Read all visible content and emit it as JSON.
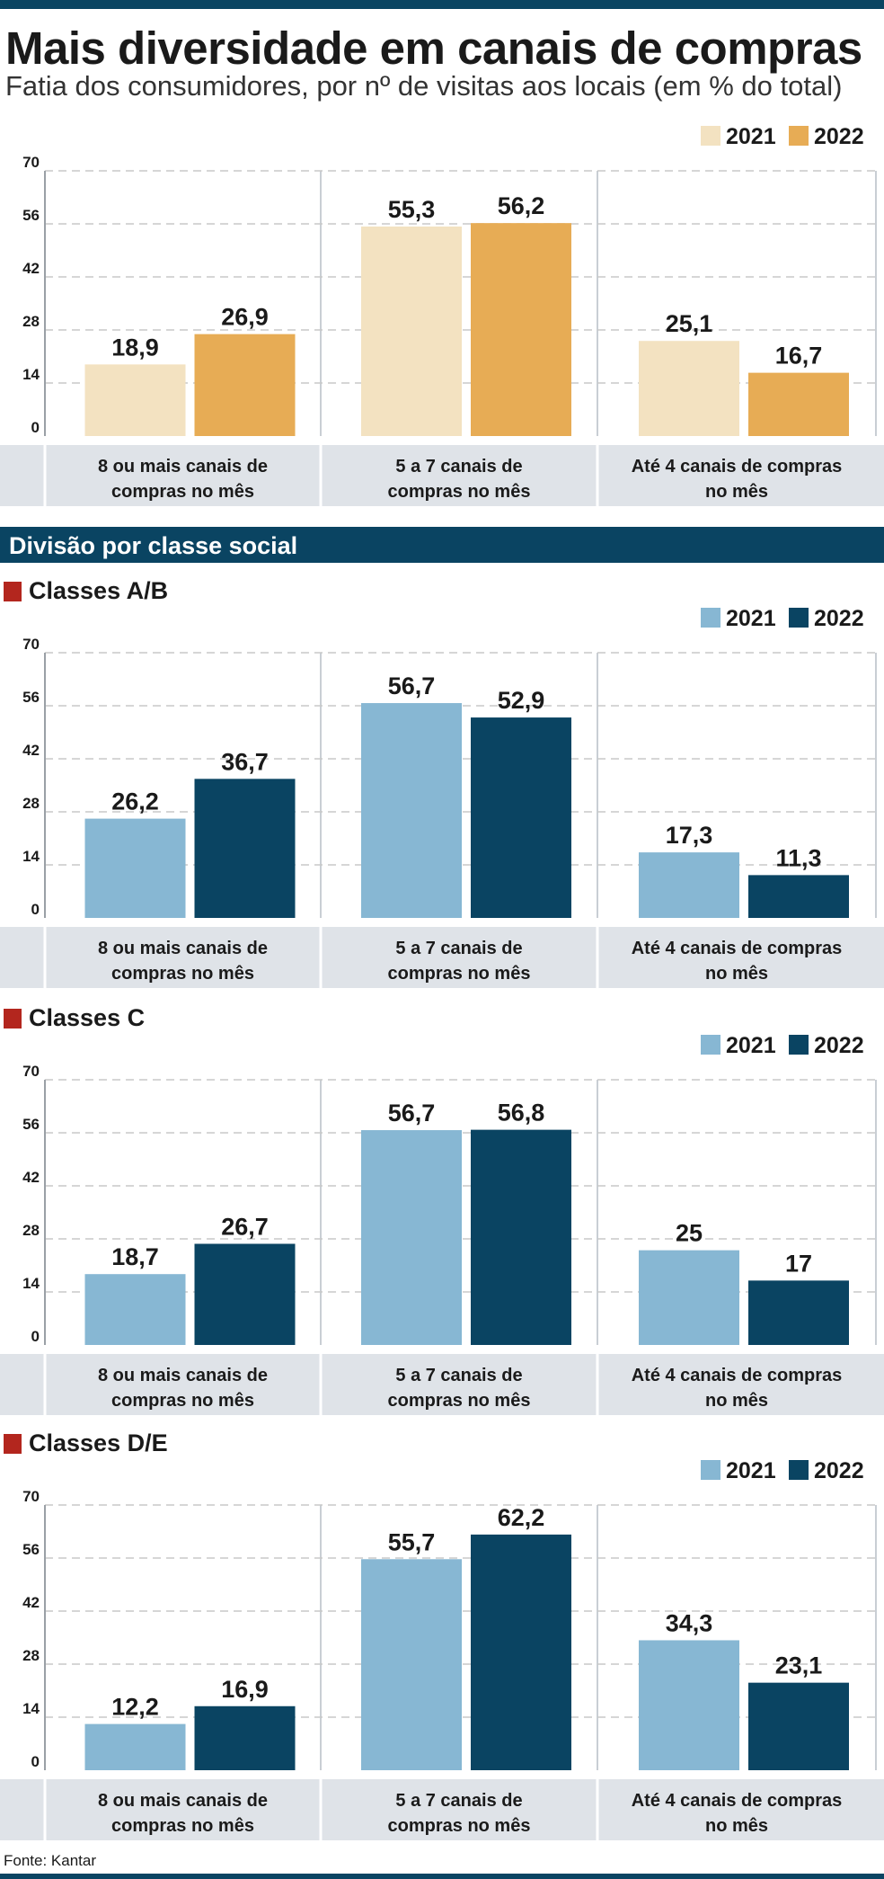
{
  "title": "Mais diversidade em canais de compras",
  "subtitle": "Fatia dos consumidores, por nº de visitas aos locais (em % do total)",
  "section_label": "Divisão por classe social",
  "source": "Fonte: Kantar",
  "colors": {
    "brand": "#0a4462",
    "accent_red": "#b3261e",
    "beige_2021": "#f3e2c1",
    "orange_2022": "#e7ac55",
    "lightblue_2021": "#87b7d3",
    "navy_2022": "#0a4462",
    "category_band": "#dfe3e8"
  },
  "chart_data": [
    {
      "id": "total",
      "type": "bar",
      "heading": "",
      "categories": [
        "8 ou mais canais de compras no mês",
        "5 a 7 canais de compras no mês",
        "Até 4 canais de compras no mês"
      ],
      "category_lines": [
        [
          "8 ou mais canais de",
          "compras no mês"
        ],
        [
          "5 a 7 canais de",
          "compras no mês"
        ],
        [
          "Até 4 canais de compras",
          "no mês"
        ]
      ],
      "series": [
        {
          "name": "2021",
          "color": "#f3e2c1",
          "values": [
            18.9,
            55.3,
            25.1
          ],
          "labels": [
            "18,9",
            "55,3",
            "25,1"
          ]
        },
        {
          "name": "2022",
          "color": "#e7ac55",
          "values": [
            26.9,
            56.2,
            16.7
          ],
          "labels": [
            "26,9",
            "56,2",
            "16,7"
          ]
        }
      ],
      "yticks": [
        "0",
        "14",
        "28",
        "42",
        "56",
        "70"
      ],
      "ylim": [
        0,
        70
      ],
      "grid": true,
      "legend": "top-right"
    },
    {
      "id": "ab",
      "type": "bar",
      "heading": "Classes A/B",
      "categories": [
        "8 ou mais canais de compras no mês",
        "5 a 7 canais de compras no mês",
        "Até 4 canais de compras no mês"
      ],
      "category_lines": [
        [
          "8 ou mais canais de",
          "compras no mês"
        ],
        [
          "5 a 7 canais de",
          "compras no mês"
        ],
        [
          "Até 4 canais de compras",
          "no mês"
        ]
      ],
      "series": [
        {
          "name": "2021",
          "color": "#87b7d3",
          "values": [
            26.2,
            56.7,
            17.3
          ],
          "labels": [
            "26,2",
            "56,7",
            "17,3"
          ]
        },
        {
          "name": "2022",
          "color": "#0a4462",
          "values": [
            36.7,
            52.9,
            11.3
          ],
          "labels": [
            "36,7",
            "52,9",
            "11,3"
          ]
        }
      ],
      "yticks": [
        "0",
        "14",
        "28",
        "42",
        "56",
        "70"
      ],
      "ylim": [
        0,
        70
      ],
      "grid": true,
      "legend": "top-right"
    },
    {
      "id": "c",
      "type": "bar",
      "heading": "Classes C",
      "categories": [
        "8 ou mais canais de compras no mês",
        "5 a 7 canais de compras no mês",
        "Até 4 canais de compras no mês"
      ],
      "category_lines": [
        [
          "8 ou mais canais de",
          "compras no mês"
        ],
        [
          "5 a 7 canais de",
          "compras no mês"
        ],
        [
          "Até 4 canais de compras",
          "no mês"
        ]
      ],
      "series": [
        {
          "name": "2021",
          "color": "#87b7d3",
          "values": [
            18.7,
            56.7,
            25
          ],
          "labels": [
            "18,7",
            "56,7",
            "25"
          ]
        },
        {
          "name": "2022",
          "color": "#0a4462",
          "values": [
            26.7,
            56.8,
            17
          ],
          "labels": [
            "26,7",
            "56,8",
            "17"
          ]
        }
      ],
      "yticks": [
        "0",
        "14",
        "28",
        "42",
        "56",
        "70"
      ],
      "ylim": [
        0,
        70
      ],
      "grid": true,
      "legend": "top-right"
    },
    {
      "id": "de",
      "type": "bar",
      "heading": "Classes D/E",
      "categories": [
        "8 ou mais canais de compras no mês",
        "5 a 7 canais de compras no mês",
        "Até 4 canais de compras no mês"
      ],
      "category_lines": [
        [
          "8 ou mais canais de",
          "compras no mês"
        ],
        [
          "5 a 7 canais de",
          "compras no mês"
        ],
        [
          "Até 4 canais de compras",
          "no mês"
        ]
      ],
      "series": [
        {
          "name": "2021",
          "color": "#87b7d3",
          "values": [
            12.2,
            55.7,
            34.3
          ],
          "labels": [
            "12,2",
            "55,7",
            "34,3"
          ]
        },
        {
          "name": "2022",
          "color": "#0a4462",
          "values": [
            16.9,
            62.2,
            23.1
          ],
          "labels": [
            "16,9",
            "62,2",
            "23,1"
          ]
        }
      ],
      "yticks": [
        "0",
        "14",
        "28",
        "42",
        "56",
        "70"
      ],
      "ylim": [
        0,
        70
      ],
      "grid": true,
      "legend": "top-right"
    }
  ]
}
